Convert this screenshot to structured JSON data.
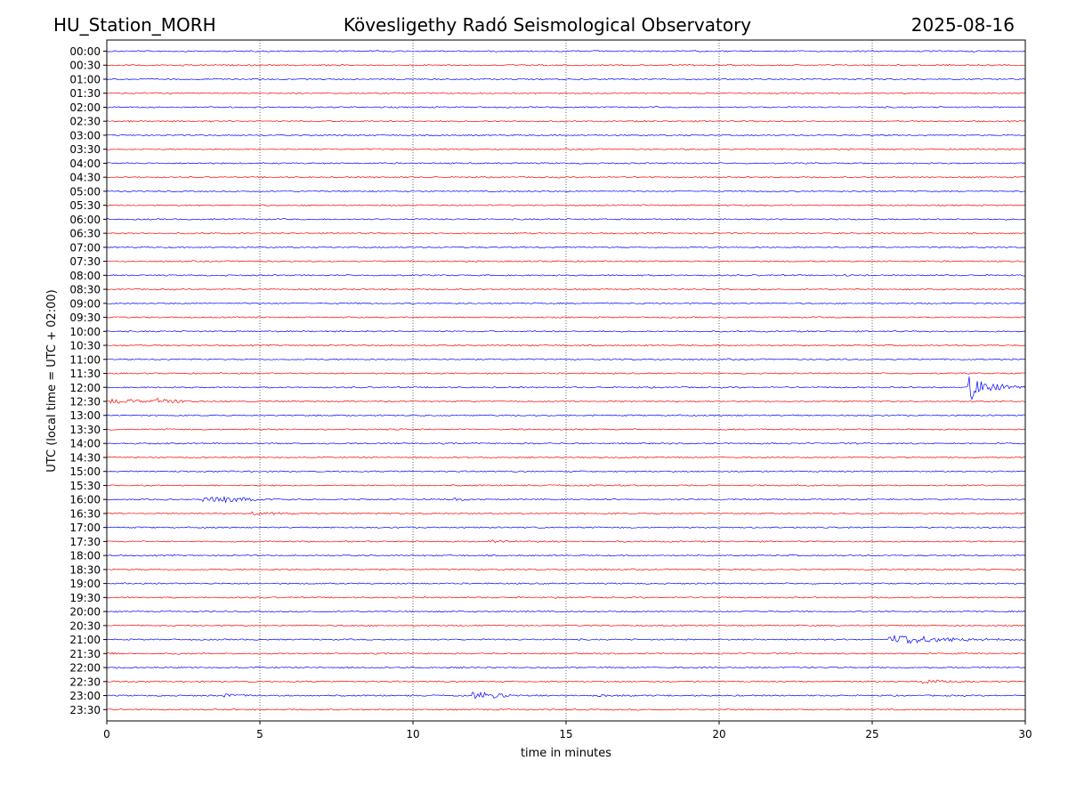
{
  "header": {
    "station": "HU_Station_MORH",
    "observatory": "Kövesligethy Radó Seismological Observatory",
    "date": "2025-08-16"
  },
  "chart_data": {
    "type": "line",
    "title": "Kövesligethy Radó Seismological Observatory",
    "xlabel": "time in minutes",
    "ylabel": "UTC (local time = UTC + 02:00)",
    "xlim": [
      0,
      30
    ],
    "xticks": [
      "0",
      "5",
      "10",
      "15",
      "20",
      "25",
      "30"
    ],
    "vertical_gridlines_at": [
      5,
      10,
      15,
      20,
      25
    ],
    "grid": "vertical dotted",
    "trace_colors": [
      "#0000ff",
      "#ff0000"
    ],
    "rows": [
      "00:00",
      "00:30",
      "01:00",
      "01:30",
      "02:00",
      "02:30",
      "03:00",
      "03:30",
      "04:00",
      "04:30",
      "05:00",
      "05:30",
      "06:00",
      "06:30",
      "07:00",
      "07:30",
      "08:00",
      "08:30",
      "09:00",
      "09:30",
      "10:00",
      "10:30",
      "11:00",
      "11:30",
      "12:00",
      "12:30",
      "13:00",
      "13:30",
      "14:00",
      "14:30",
      "15:00",
      "15:30",
      "16:00",
      "16:30",
      "17:00",
      "17:30",
      "18:00",
      "18:30",
      "19:00",
      "19:30",
      "20:00",
      "20:30",
      "21:00",
      "21:30",
      "22:00",
      "22:30",
      "23:00",
      "23:30"
    ],
    "events": [
      {
        "row": "00:00",
        "start_min": 8.8,
        "duration_min": 0.4,
        "amplitude": 0.25
      },
      {
        "row": "00:30",
        "start_min": 2.4,
        "duration_min": 0.4,
        "amplitude": 0.2
      },
      {
        "row": "08:00",
        "start_min": 24.0,
        "duration_min": 0.8,
        "amplitude": 0.15
      },
      {
        "row": "12:00",
        "start_min": 28.1,
        "duration_min": 1.9,
        "amplitude": 3.5
      },
      {
        "row": "12:30",
        "start_min": 0.0,
        "duration_min": 4.0,
        "amplitude": 0.5
      },
      {
        "row": "12:30",
        "start_min": 1.6,
        "duration_min": 1.5,
        "amplitude": 0.6
      },
      {
        "row": "16:00",
        "start_min": 3.1,
        "duration_min": 3.0,
        "amplitude": 0.75
      },
      {
        "row": "16:00",
        "start_min": 3.8,
        "duration_min": 1.5,
        "amplitude": 0.7
      },
      {
        "row": "16:00",
        "start_min": 11.3,
        "duration_min": 0.8,
        "amplitude": 0.45
      },
      {
        "row": "16:30",
        "start_min": 4.7,
        "duration_min": 2.5,
        "amplitude": 0.45
      },
      {
        "row": "17:30",
        "start_min": 12.4,
        "duration_min": 2.5,
        "amplitude": 0.35
      },
      {
        "row": "21:00",
        "start_min": 25.5,
        "duration_min": 4.5,
        "amplitude": 1.4
      },
      {
        "row": "21:30",
        "start_min": 0.0,
        "duration_min": 0.6,
        "amplitude": 0.2
      },
      {
        "row": "21:30",
        "start_min": 2.2,
        "duration_min": 0.5,
        "amplitude": 0.2
      },
      {
        "row": "22:30",
        "start_min": 26.6,
        "duration_min": 2.0,
        "amplitude": 0.5
      },
      {
        "row": "23:00",
        "start_min": 3.8,
        "duration_min": 1.2,
        "amplitude": 0.6
      },
      {
        "row": "23:00",
        "start_min": 11.9,
        "duration_min": 2.8,
        "amplitude": 1.0
      },
      {
        "row": "23:00",
        "start_min": 16.0,
        "duration_min": 2.0,
        "amplitude": 0.15
      }
    ]
  }
}
